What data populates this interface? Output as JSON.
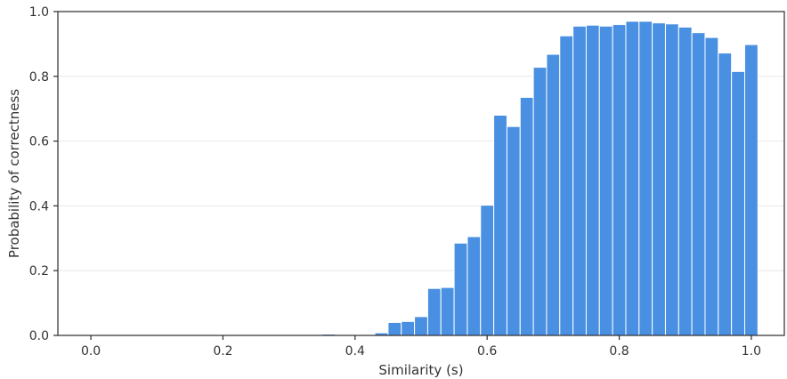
{
  "chart_data": {
    "type": "bar",
    "xlabel": "Similarity (s)",
    "ylabel": "Probability of correctness",
    "xlim": [
      -0.05,
      1.05
    ],
    "ylim": [
      0.0,
      1.0
    ],
    "grid": "horizontal",
    "bar_color": "#4a90e2",
    "bin_width": 0.02,
    "xticks": [
      0.0,
      0.2,
      0.4,
      0.6,
      0.8,
      1.0
    ],
    "xtick_labels": [
      "0.0",
      "0.2",
      "0.4",
      "0.6",
      "0.8",
      "1.0"
    ],
    "yticks": [
      0.0,
      0.2,
      0.4,
      0.6,
      0.8,
      1.0
    ],
    "ytick_labels": [
      "0.0",
      "0.2",
      "0.4",
      "0.6",
      "0.8",
      "1.0"
    ],
    "bins": [
      {
        "x": 0.0,
        "y": 0.0
      },
      {
        "x": 0.02,
        "y": 0.0
      },
      {
        "x": 0.04,
        "y": 0.0
      },
      {
        "x": 0.06,
        "y": 0.0
      },
      {
        "x": 0.08,
        "y": 0.0
      },
      {
        "x": 0.1,
        "y": 0.0
      },
      {
        "x": 0.12,
        "y": 0.0
      },
      {
        "x": 0.14,
        "y": 0.0
      },
      {
        "x": 0.16,
        "y": 0.0
      },
      {
        "x": 0.18,
        "y": 0.0
      },
      {
        "x": 0.2,
        "y": 0.0
      },
      {
        "x": 0.22,
        "y": 0.0
      },
      {
        "x": 0.24,
        "y": 0.0
      },
      {
        "x": 0.26,
        "y": 0.0
      },
      {
        "x": 0.28,
        "y": 0.0
      },
      {
        "x": 0.3,
        "y": 0.0
      },
      {
        "x": 0.32,
        "y": 0.0
      },
      {
        "x": 0.34,
        "y": 0.0
      },
      {
        "x": 0.36,
        "y": 0.004
      },
      {
        "x": 0.38,
        "y": 0.0
      },
      {
        "x": 0.4,
        "y": 0.0
      },
      {
        "x": 0.42,
        "y": 0.0
      },
      {
        "x": 0.44,
        "y": 0.008
      },
      {
        "x": 0.46,
        "y": 0.04
      },
      {
        "x": 0.48,
        "y": 0.043
      },
      {
        "x": 0.5,
        "y": 0.058
      },
      {
        "x": 0.52,
        "y": 0.145
      },
      {
        "x": 0.54,
        "y": 0.148
      },
      {
        "x": 0.56,
        "y": 0.285
      },
      {
        "x": 0.58,
        "y": 0.305
      },
      {
        "x": 0.6,
        "y": 0.402
      },
      {
        "x": 0.62,
        "y": 0.68
      },
      {
        "x": 0.64,
        "y": 0.645
      },
      {
        "x": 0.66,
        "y": 0.735
      },
      {
        "x": 0.68,
        "y": 0.828
      },
      {
        "x": 0.7,
        "y": 0.868
      },
      {
        "x": 0.72,
        "y": 0.925
      },
      {
        "x": 0.74,
        "y": 0.955
      },
      {
        "x": 0.76,
        "y": 0.958
      },
      {
        "x": 0.78,
        "y": 0.955
      },
      {
        "x": 0.8,
        "y": 0.96
      },
      {
        "x": 0.82,
        "y": 0.97
      },
      {
        "x": 0.84,
        "y": 0.97
      },
      {
        "x": 0.86,
        "y": 0.965
      },
      {
        "x": 0.88,
        "y": 0.962
      },
      {
        "x": 0.9,
        "y": 0.952
      },
      {
        "x": 0.92,
        "y": 0.935
      },
      {
        "x": 0.94,
        "y": 0.92
      },
      {
        "x": 0.96,
        "y": 0.872
      },
      {
        "x": 0.98,
        "y": 0.815
      },
      {
        "x": 1.0,
        "y": 0.898
      }
    ]
  }
}
